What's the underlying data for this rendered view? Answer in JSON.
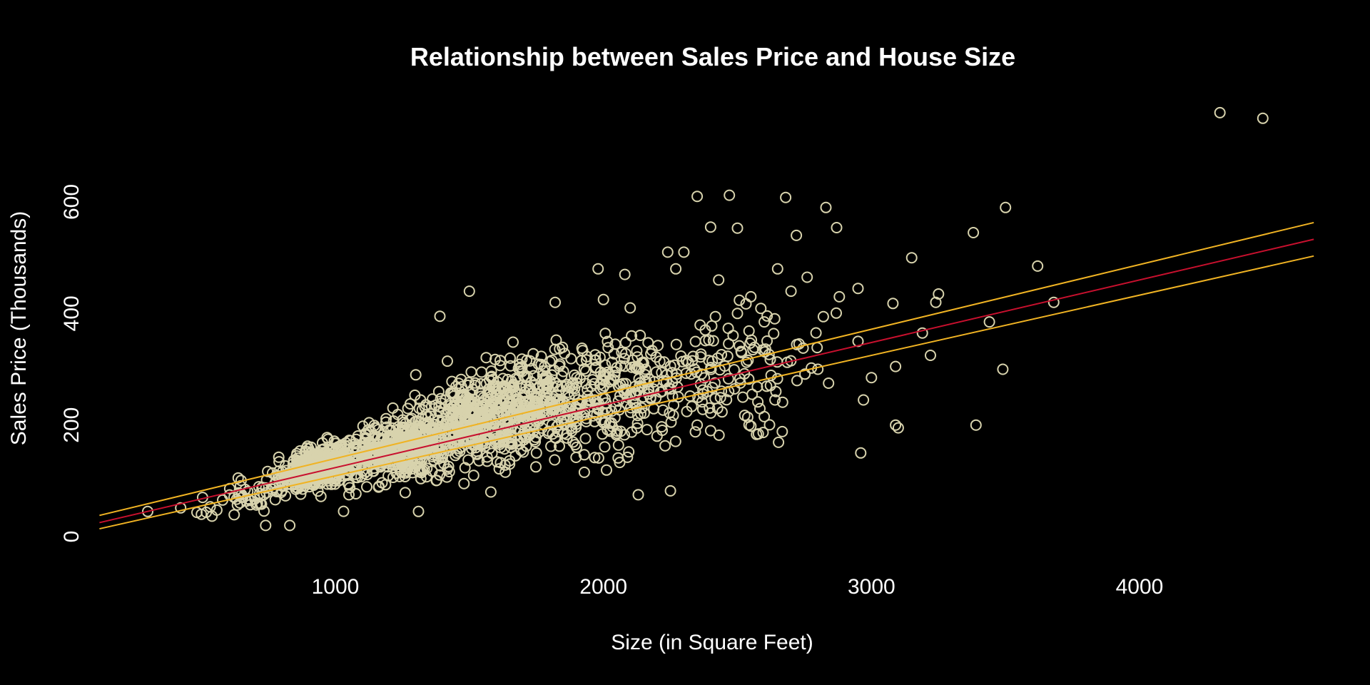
{
  "chart_data": {
    "type": "scatter",
    "title": "Relationship between Sales Price and House Size",
    "xlabel": "Size (in Square Feet)",
    "ylabel": "Sales Price (Thousands)",
    "xlim": [
      30,
      4680
    ],
    "ylim": [
      -100,
      780
    ],
    "x_ticks": [
      "1000",
      "2000",
      "3000",
      "4000"
    ],
    "y_ticks": [
      "0",
      "200",
      "400",
      "600"
    ],
    "x_tick_values": [
      1000,
      2000,
      3000,
      4000
    ],
    "y_tick_values": [
      0,
      200,
      400,
      600
    ],
    "grid": false,
    "colors": {
      "background": "#000000",
      "points": "#d8d3ad",
      "fit_line": "#c8102e",
      "band_lines": "#f0b323",
      "text": "#ffffff"
    },
    "fit_line": {
      "x": [
        120,
        4650
      ],
      "y": [
        25,
        533
      ]
    },
    "band_upper": {
      "x": [
        120,
        4650
      ],
      "y": [
        38,
        563
      ]
    },
    "band_lower": {
      "x": [
        120,
        4650
      ],
      "y": [
        14,
        503
      ]
    },
    "series": [
      {
        "values_x": [
          4300,
          4460,
          2350,
          2470,
          2680,
          2400,
          2500,
          2830,
          2870,
          2720,
          3500,
          3380,
          3150,
          3620,
          2240,
          2300,
          2270,
          3680,
          2950,
          3250,
          3240,
          3080,
          3440,
          3190,
          3220,
          3090,
          3490,
          3000,
          2970,
          2960,
          3390,
          3090,
          3100,
          2950,
          1390,
          1300,
          2130,
          2250,
          1480,
          1580,
          830,
          740,
          300,
          500,
          1310,
          1980,
          2080,
          1500,
          1820,
          2000,
          2100,
          2500,
          2600,
          2700,
          2550,
          2430,
          2650,
          2760,
          2880,
          2520,
          2350,
          2200,
          1900,
          1750,
          1650,
          2800,
          2840,
          2640,
          2600,
          2400
        ],
        "values_y": [
          760,
          750,
          610,
          612,
          608,
          555,
          553,
          590,
          554,
          540,
          590,
          545,
          500,
          485,
          510,
          510,
          480,
          420,
          445,
          435,
          420,
          418,
          385,
          365,
          325,
          305,
          300,
          285,
          245,
          150,
          200,
          200,
          195,
          350,
          395,
          290,
          75,
          82,
          95,
          80,
          20,
          20,
          45,
          40,
          45,
          480,
          470,
          440,
          420,
          425,
          410,
          400,
          385,
          440,
          430,
          460,
          480,
          465,
          430,
          250,
          200,
          180,
          160,
          150,
          130,
          300,
          275,
          245,
          215,
          190
        ]
      }
    ]
  }
}
